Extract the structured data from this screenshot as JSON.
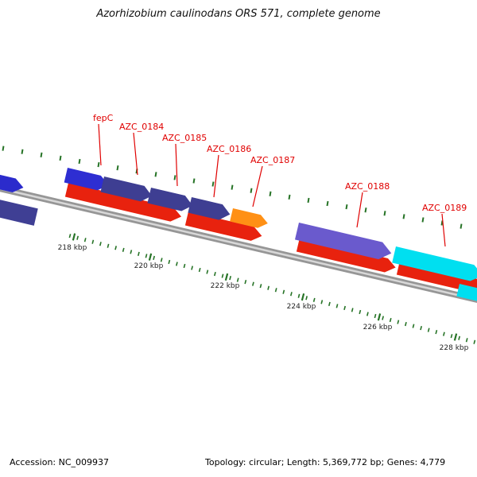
{
  "title": "Azorhizobium caulinodans ORS 571, complete genome",
  "genes": [
    {
      "label": "fepC",
      "color": "#2e2ed2"
    },
    {
      "label": "AZC_0184",
      "color": "#3e3e92"
    },
    {
      "label": "AZC_0185",
      "color": "#3e3e92"
    },
    {
      "label": "AZC_0186",
      "color": "#3e3e92"
    },
    {
      "label": "AZC_0187",
      "color": "#ff9015"
    },
    {
      "label": "AZC_0188",
      "color": "#6a5acd"
    },
    {
      "label": "AZC_0189",
      "color": "#00dff0"
    }
  ],
  "partials": {
    "top_left_color": "#2b2bcc",
    "bottom_left_color": "#3f3f94"
  },
  "gene_track_color": "#e8220e",
  "backbone_color": "#969696",
  "backbone_inner_color": "#d8d8d8",
  "label_color": "#e00000",
  "scale": {
    "labels": [
      "218 kbp",
      "220 kbp",
      "222 kbp",
      "224 kbp",
      "226 kbp",
      "228 kbp"
    ],
    "tick_color": "#267326"
  },
  "status": {
    "accession": "Accession: NC_009937",
    "summary": "Topology: circular; Length: 5,369,772 bp; Genes: 4,779"
  }
}
